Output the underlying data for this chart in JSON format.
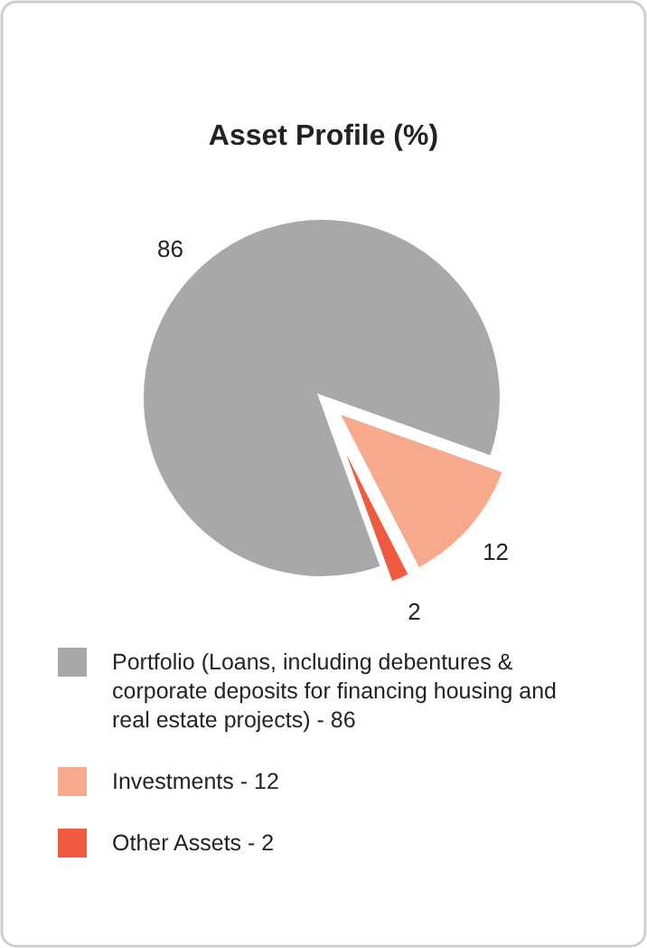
{
  "chart_data": {
    "type": "pie",
    "title": "Asset Profile (%)",
    "categories": [
      "Portfolio (Loans, including debentures & corporate deposits for financing housing and real estate projects) - 86",
      "Investments - 12",
      "Other Assets - 2"
    ],
    "values": [
      86,
      12,
      2
    ],
    "colors": [
      "#a7a8aa",
      "#f7a98b",
      "#ef5a40"
    ],
    "data_labels": true,
    "legend": "bottom"
  }
}
